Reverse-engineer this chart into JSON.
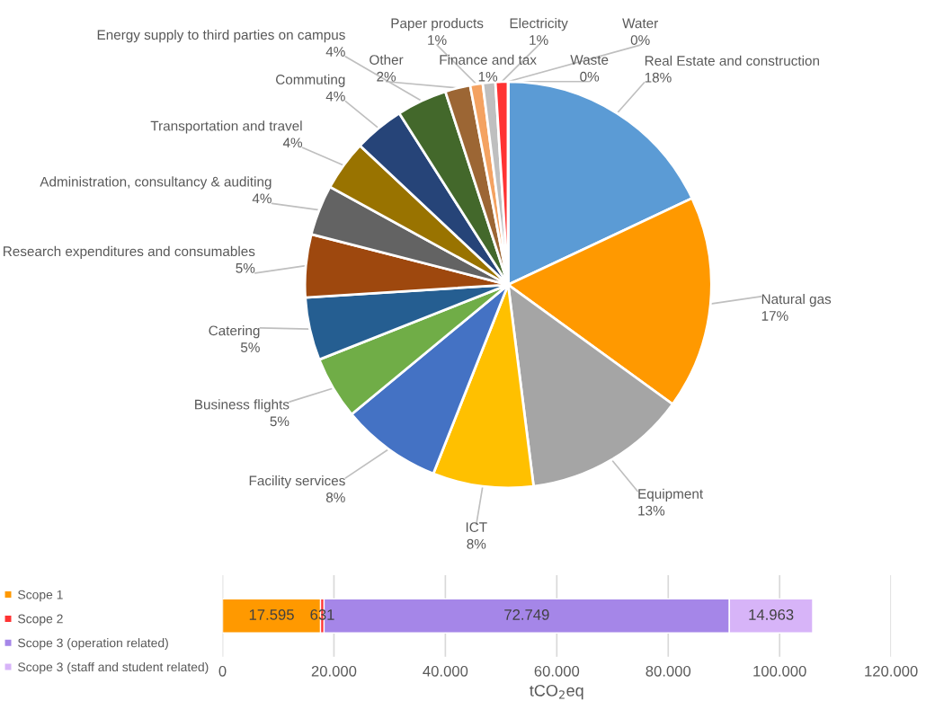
{
  "chart_data": [
    {
      "type": "pie",
      "categories": [
        "Real Estate and construction",
        "Natural gas",
        "Equipment",
        "ICT",
        "Facility services",
        "Business flights",
        "Catering",
        "Research expenditures and consumables",
        "Administration, consultancy & auditing",
        "Transportation and travel",
        "Commuting",
        "Energy supply to third parties on campus",
        "Other",
        "Paper products",
        "Finance and tax",
        "Electricity",
        "Waste",
        "Water"
      ],
      "values": [
        18,
        17,
        13,
        8,
        8,
        5,
        5,
        5,
        4,
        4,
        4,
        4,
        2,
        1,
        1,
        1,
        0,
        0
      ],
      "value_labels": [
        "18%",
        "17%",
        "13%",
        "8%",
        "8%",
        "5%",
        "5%",
        "5%",
        "4%",
        "4%",
        "4%",
        "4%",
        "2%",
        "1%",
        "1%",
        "1%",
        "0%",
        "0%"
      ],
      "colors": [
        "#5b9bd5",
        "#ff9900",
        "#a5a5a5",
        "#ffc000",
        "#4472c4",
        "#70ad47",
        "#255e91",
        "#9e480e",
        "#636363",
        "#997300",
        "#264478",
        "#43682b",
        "#9c6634",
        "#f4a261",
        "#bfbfbf",
        "#ff3333",
        "#7f7f7f",
        "#9dc3e6"
      ],
      "legend": false
    },
    {
      "type": "bar",
      "orientation": "horizontal",
      "stacked": true,
      "categories": [
        null
      ],
      "series": [
        {
          "name": "Scope 1",
          "color": "#ff9900",
          "values": [
            17595
          ],
          "value_labels": [
            "17.595"
          ]
        },
        {
          "name": "Scope 2",
          "color": "#ff3333",
          "values": [
            631
          ],
          "value_labels": [
            "631"
          ]
        },
        {
          "name": "Scope 3 (operation related)",
          "color": "#a586e8",
          "values": [
            72749
          ],
          "value_labels": [
            "72.749"
          ]
        },
        {
          "name": "Scope 3 (staff and student related)",
          "color": "#d7b4f8",
          "values": [
            14963
          ],
          "value_labels": [
            "14.963"
          ]
        }
      ],
      "xlabel": "tCO$_{2}$eq",
      "xlim": [
        0,
        120000
      ],
      "xticks": [
        0,
        {
          "value": 20000,
          "label": "20.000"
        },
        {
          "value": 40000,
          "label": "40.000"
        },
        {
          "value": 60000,
          "label": "60.000"
        },
        {
          "value": 80000,
          "label": "80.000"
        },
        {
          "value": 100000,
          "label": "100.000"
        },
        {
          "value": 120000,
          "label": "120.000"
        }
      ],
      "grid": "x",
      "legend": "left",
      "tick_labels": "x"
    }
  ]
}
